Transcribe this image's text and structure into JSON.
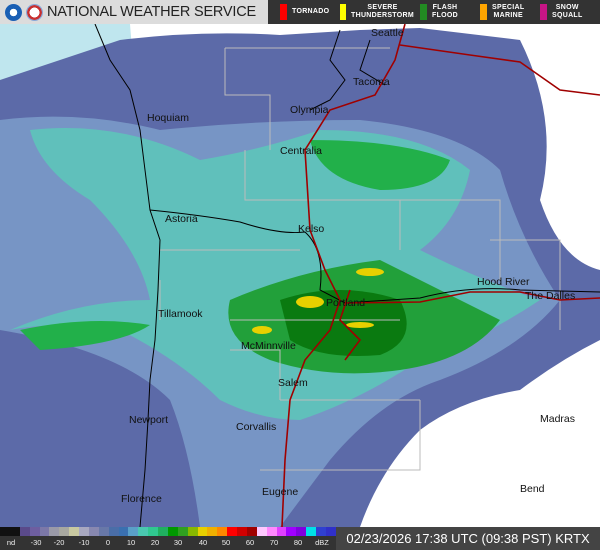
{
  "header": {
    "title": "NATIONAL WEATHER SERVICE",
    "noaa_logo": "noaa-logo",
    "nws_logo": "nws-logo",
    "warnings": [
      {
        "label1": "TORNADO",
        "label2": "",
        "color": "#ff0000"
      },
      {
        "label1": "SEVERE",
        "label2": "THUNDERSTORM",
        "color": "#ffff00"
      },
      {
        "label1": "FLASH",
        "label2": "FLOOD",
        "color": "#228b22"
      },
      {
        "label1": "SPECIAL",
        "label2": "MARINE",
        "color": "#ffa500"
      },
      {
        "label1": "SNOW",
        "label2": "SQUALL",
        "color": "#c71585"
      }
    ]
  },
  "map": {
    "cities": [
      {
        "name": "Seattle"
      },
      {
        "name": "Tacoma"
      },
      {
        "name": "Olympia"
      },
      {
        "name": "Hoquiam"
      },
      {
        "name": "Centralia"
      },
      {
        "name": "Astoria"
      },
      {
        "name": "Kelso"
      },
      {
        "name": "Hood River"
      },
      {
        "name": "The Dalles"
      },
      {
        "name": "Portland"
      },
      {
        "name": "Tillamook"
      },
      {
        "name": "McMinnville"
      },
      {
        "name": "Salem"
      },
      {
        "name": "Madras"
      },
      {
        "name": "Newport"
      },
      {
        "name": "Corvallis"
      },
      {
        "name": "Eugene"
      },
      {
        "name": "Bend"
      },
      {
        "name": "Florence"
      }
    ]
  },
  "legend": {
    "colors": [
      "#111111",
      "#111111",
      "#5a4a8a",
      "#6e5ea0",
      "#7c78a8",
      "#9a9aa8",
      "#a8a8a0",
      "#c8c8a0",
      "#a8a8c0",
      "#8888b0",
      "#6878a8",
      "#4a6ea8",
      "#3a70b0",
      "#5aa0c8",
      "#4ac8b0",
      "#30c890",
      "#20b060",
      "#009900",
      "#30a020",
      "#88b800",
      "#e8d000",
      "#f0b000",
      "#ff8800",
      "#ff0000",
      "#d00000",
      "#a00000",
      "#ffc8ff",
      "#ff88ff",
      "#e040ff",
      "#a000ff",
      "#8000e0",
      "#00e0e8",
      "#3040d0",
      "#3030c8"
    ],
    "labels": [
      "nd",
      "-30",
      "-20",
      "-10",
      "0",
      "10",
      "20",
      "30",
      "40",
      "50",
      "60",
      "70",
      "80",
      "dBZ"
    ],
    "timestamp": "02/23/2026 17:38 UTC (09:38 PST) KRTX"
  }
}
